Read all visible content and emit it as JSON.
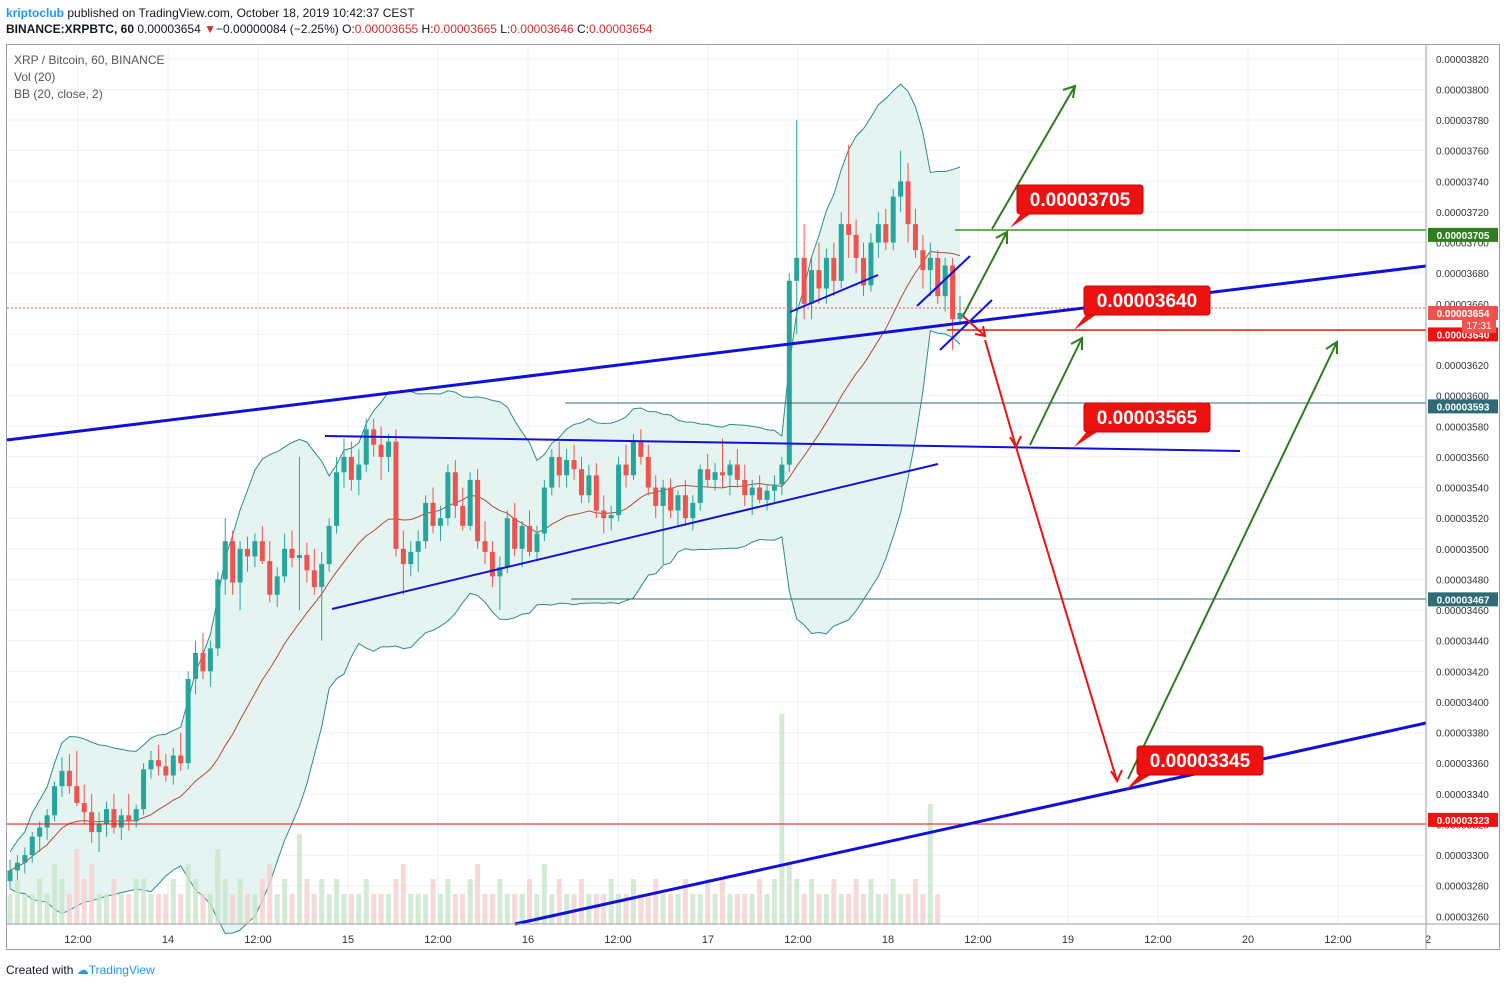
{
  "header": {
    "publisher": "kriptoclub",
    "published_text": "published on TradingView.com, October 18, 2019 10:42:37 CEST",
    "symbol": "BINANCE:XRPBTC, 60",
    "last": "0.00003654",
    "change_arrow": "▼",
    "change": "−0.00000084 (−2.25%)",
    "o_label": "O:",
    "o": "0.00003655",
    "h_label": "H:",
    "h": "0.00003665",
    "l_label": "L:",
    "l": "0.00003646",
    "c_label": "C:",
    "c": "0.00003654"
  },
  "legend": {
    "title": "XRP / Bitcoin, 60, BINANCE",
    "vol": "Vol (20)",
    "bb": "BB (20, close, 2)"
  },
  "footer": {
    "created_with": "Created with",
    "brand": "TradingView"
  },
  "colors": {
    "up": "#26a69a",
    "down": "#ef5350",
    "bb": "#2e8b8b",
    "bb_fill": "#e6f4f1",
    "basis": "#b04a3a",
    "blue": "#1010dd",
    "green": "#2e7d1e",
    "red": "#ee1111"
  },
  "chart_data": {
    "type": "candlestick",
    "ylim": [
      3.25e-05,
      3.83e-05
    ],
    "y_ticks": [
      "0.00003820",
      "0.00003800",
      "0.00003780",
      "0.00003760",
      "0.00003740",
      "0.00003720",
      "0.00003700",
      "0.00003680",
      "0.00003660",
      "0.00003640",
      "0.00003620",
      "0.00003600",
      "0.00003580",
      "0.00003560",
      "0.00003540",
      "0.00003520",
      "0.00003500",
      "0.00003480",
      "0.00003460",
      "0.00003440",
      "0.00003420",
      "0.00003400",
      "0.00003380",
      "0.00003360",
      "0.00003340",
      "0.00003320",
      "0.00003300",
      "0.00003280",
      "0.00003260"
    ],
    "x_ticks": [
      "12:00",
      "14",
      "12:00",
      "15",
      "12:00",
      "16",
      "12:00",
      "17",
      "12:00",
      "18",
      "12:00",
      "19",
      "12:00",
      "20",
      "12:00",
      "2"
    ],
    "last_time_badge": "17:31",
    "price_badges": [
      {
        "label": "0.00003705",
        "value": 3.705e-05,
        "color": "#2e7d1e"
      },
      {
        "label": "0.00003654",
        "value": 3.654e-05,
        "color": "#ef5350"
      },
      {
        "label": "0.00003640",
        "value": 3.64e-05,
        "color": "#ee1111"
      },
      {
        "label": "0.00003593",
        "value": 3.593e-05,
        "color": "#2e6b75"
      },
      {
        "label": "0.00003467",
        "value": 3.467e-05,
        "color": "#2e6b75"
      },
      {
        "label": "0.00003323",
        "value": 3.323e-05,
        "color": "#ee1111"
      }
    ],
    "annotations": [
      {
        "label": "0.00003705",
        "value": 3.705e-05
      },
      {
        "label": "0.00003640",
        "value": 3.64e-05
      },
      {
        "label": "0.00003565",
        "value": 3.565e-05
      },
      {
        "label": "0.00003345",
        "value": 3.345e-05
      }
    ],
    "candles": [
      {
        "o": 3.283,
        "h": 3.297,
        "l": 3.278,
        "c": 3.29
      },
      {
        "o": 3.29,
        "h": 3.3,
        "l": 3.284,
        "c": 3.295
      },
      {
        "o": 3.295,
        "h": 3.305,
        "l": 3.288,
        "c": 3.3
      },
      {
        "o": 3.3,
        "h": 3.315,
        "l": 3.295,
        "c": 3.312
      },
      {
        "o": 3.312,
        "h": 3.322,
        "l": 3.302,
        "c": 3.318
      },
      {
        "o": 3.318,
        "h": 3.33,
        "l": 3.31,
        "c": 3.326
      },
      {
        "o": 3.326,
        "h": 3.348,
        "l": 3.322,
        "c": 3.345
      },
      {
        "o": 3.345,
        "h": 3.364,
        "l": 3.338,
        "c": 3.355
      },
      {
        "o": 3.355,
        "h": 3.366,
        "l": 3.34,
        "c": 3.345
      },
      {
        "o": 3.345,
        "h": 3.368,
        "l": 3.332,
        "c": 3.334
      },
      {
        "o": 3.334,
        "h": 3.346,
        "l": 3.32,
        "c": 3.328
      },
      {
        "o": 3.328,
        "h": 3.34,
        "l": 3.308,
        "c": 3.315
      },
      {
        "o": 3.315,
        "h": 3.328,
        "l": 3.302,
        "c": 3.32
      },
      {
        "o": 3.32,
        "h": 3.335,
        "l": 3.312,
        "c": 3.33
      },
      {
        "o": 3.33,
        "h": 3.34,
        "l": 3.314,
        "c": 3.318
      },
      {
        "o": 3.318,
        "h": 3.33,
        "l": 3.31,
        "c": 3.326
      },
      {
        "o": 3.326,
        "h": 3.34,
        "l": 3.316,
        "c": 3.322
      },
      {
        "o": 3.322,
        "h": 3.333,
        "l": 3.318,
        "c": 3.33
      },
      {
        "o": 3.33,
        "h": 3.36,
        "l": 3.326,
        "c": 3.356
      },
      {
        "o": 3.356,
        "h": 3.368,
        "l": 3.35,
        "c": 3.362
      },
      {
        "o": 3.362,
        "h": 3.372,
        "l": 3.352,
        "c": 3.358
      },
      {
        "o": 3.358,
        "h": 3.366,
        "l": 3.348,
        "c": 3.352
      },
      {
        "o": 3.352,
        "h": 3.37,
        "l": 3.346,
        "c": 3.365
      },
      {
        "o": 3.365,
        "h": 3.38,
        "l": 3.355,
        "c": 3.36
      },
      {
        "o": 3.36,
        "h": 3.42,
        "l": 3.356,
        "c": 3.415
      },
      {
        "o": 3.415,
        "h": 3.44,
        "l": 3.405,
        "c": 3.432
      },
      {
        "o": 3.432,
        "h": 3.445,
        "l": 3.415,
        "c": 3.42
      },
      {
        "o": 3.42,
        "h": 3.44,
        "l": 3.41,
        "c": 3.435
      },
      {
        "o": 3.435,
        "h": 3.485,
        "l": 3.43,
        "c": 3.48
      },
      {
        "o": 3.48,
        "h": 3.52,
        "l": 3.47,
        "c": 3.505
      },
      {
        "o": 3.505,
        "h": 3.512,
        "l": 3.47,
        "c": 3.478
      },
      {
        "o": 3.478,
        "h": 3.505,
        "l": 3.46,
        "c": 3.5
      },
      {
        "o": 3.5,
        "h": 3.508,
        "l": 3.485,
        "c": 3.495
      },
      {
        "o": 3.495,
        "h": 3.51,
        "l": 3.488,
        "c": 3.505
      },
      {
        "o": 3.505,
        "h": 3.515,
        "l": 3.49,
        "c": 3.492
      },
      {
        "o": 3.492,
        "h": 3.505,
        "l": 3.465,
        "c": 3.47
      },
      {
        "o": 3.47,
        "h": 3.488,
        "l": 3.462,
        "c": 3.482
      },
      {
        "o": 3.482,
        "h": 3.51,
        "l": 3.478,
        "c": 3.5
      },
      {
        "o": 3.5,
        "h": 3.512,
        "l": 3.488,
        "c": 3.494
      },
      {
        "o": 3.494,
        "h": 3.56,
        "l": 3.46,
        "c": 3.496
      },
      {
        "o": 3.496,
        "h": 3.504,
        "l": 3.478,
        "c": 3.486
      },
      {
        "o": 3.486,
        "h": 3.5,
        "l": 3.47,
        "c": 3.475
      },
      {
        "o": 3.475,
        "h": 3.498,
        "l": 3.44,
        "c": 3.49
      },
      {
        "o": 3.49,
        "h": 3.52,
        "l": 3.485,
        "c": 3.515
      },
      {
        "o": 3.515,
        "h": 3.56,
        "l": 3.51,
        "c": 3.55
      },
      {
        "o": 3.55,
        "h": 3.572,
        "l": 3.54,
        "c": 3.56
      },
      {
        "o": 3.56,
        "h": 3.57,
        "l": 3.538,
        "c": 3.545
      },
      {
        "o": 3.545,
        "h": 3.565,
        "l": 3.535,
        "c": 3.555
      },
      {
        "o": 3.555,
        "h": 3.585,
        "l": 3.55,
        "c": 3.578
      },
      {
        "o": 3.578,
        "h": 3.585,
        "l": 3.56,
        "c": 3.568
      },
      {
        "o": 3.568,
        "h": 3.58,
        "l": 3.545,
        "c": 3.56
      },
      {
        "o": 3.56,
        "h": 3.575,
        "l": 3.55,
        "c": 3.57
      },
      {
        "o": 3.57,
        "h": 3.578,
        "l": 3.495,
        "c": 3.5
      },
      {
        "o": 3.5,
        "h": 3.512,
        "l": 3.47,
        "c": 3.49
      },
      {
        "o": 3.49,
        "h": 3.505,
        "l": 3.482,
        "c": 3.498
      },
      {
        "o": 3.498,
        "h": 3.512,
        "l": 3.485,
        "c": 3.505
      },
      {
        "o": 3.505,
        "h": 3.535,
        "l": 3.5,
        "c": 3.53
      },
      {
        "o": 3.53,
        "h": 3.54,
        "l": 3.51,
        "c": 3.515
      },
      {
        "o": 3.515,
        "h": 3.528,
        "l": 3.505,
        "c": 3.52
      },
      {
        "o": 3.52,
        "h": 3.555,
        "l": 3.515,
        "c": 3.55
      },
      {
        "o": 3.55,
        "h": 3.558,
        "l": 3.52,
        "c": 3.528
      },
      {
        "o": 3.528,
        "h": 3.54,
        "l": 3.512,
        "c": 3.515
      },
      {
        "o": 3.515,
        "h": 3.55,
        "l": 3.512,
        "c": 3.545
      },
      {
        "o": 3.545,
        "h": 3.552,
        "l": 3.5,
        "c": 3.505
      },
      {
        "o": 3.505,
        "h": 3.518,
        "l": 3.49,
        "c": 3.498
      },
      {
        "o": 3.498,
        "h": 3.505,
        "l": 3.475,
        "c": 3.482
      },
      {
        "o": 3.482,
        "h": 3.495,
        "l": 3.46,
        "c": 3.488
      },
      {
        "o": 3.488,
        "h": 3.525,
        "l": 3.484,
        "c": 3.52
      },
      {
        "o": 3.52,
        "h": 3.53,
        "l": 3.495,
        "c": 3.5
      },
      {
        "o": 3.5,
        "h": 3.518,
        "l": 3.488,
        "c": 3.515
      },
      {
        "o": 3.515,
        "h": 3.525,
        "l": 3.495,
        "c": 3.498
      },
      {
        "o": 3.498,
        "h": 3.515,
        "l": 3.492,
        "c": 3.51
      },
      {
        "o": 3.51,
        "h": 3.545,
        "l": 3.505,
        "c": 3.54
      },
      {
        "o": 3.54,
        "h": 3.565,
        "l": 3.535,
        "c": 3.56
      },
      {
        "o": 3.56,
        "h": 3.57,
        "l": 3.54,
        "c": 3.548
      },
      {
        "o": 3.548,
        "h": 3.565,
        "l": 3.54,
        "c": 3.558
      },
      {
        "o": 3.558,
        "h": 3.568,
        "l": 3.545,
        "c": 3.552
      },
      {
        "o": 3.552,
        "h": 3.56,
        "l": 3.53,
        "c": 3.535
      },
      {
        "o": 3.535,
        "h": 3.555,
        "l": 3.53,
        "c": 3.548
      },
      {
        "o": 3.548,
        "h": 3.556,
        "l": 3.52,
        "c": 3.525
      },
      {
        "o": 3.525,
        "h": 3.535,
        "l": 3.51,
        "c": 3.52
      },
      {
        "o": 3.52,
        "h": 3.528,
        "l": 3.512,
        "c": 3.522
      },
      {
        "o": 3.522,
        "h": 3.56,
        "l": 3.518,
        "c": 3.555
      },
      {
        "o": 3.555,
        "h": 3.568,
        "l": 3.54,
        "c": 3.548
      },
      {
        "o": 3.548,
        "h": 3.575,
        "l": 3.545,
        "c": 3.57
      },
      {
        "o": 3.57,
        "h": 3.578,
        "l": 3.555,
        "c": 3.56
      },
      {
        "o": 3.56,
        "h": 3.568,
        "l": 3.535,
        "c": 3.54
      },
      {
        "o": 3.54,
        "h": 3.548,
        "l": 3.52,
        "c": 3.528
      },
      {
        "o": 3.528,
        "h": 3.545,
        "l": 3.49,
        "c": 3.54
      },
      {
        "o": 3.54,
        "h": 3.546,
        "l": 3.52,
        "c": 3.525
      },
      {
        "o": 3.525,
        "h": 3.538,
        "l": 3.515,
        "c": 3.535
      },
      {
        "o": 3.535,
        "h": 3.545,
        "l": 3.515,
        "c": 3.52
      },
      {
        "o": 3.52,
        "h": 3.535,
        "l": 3.512,
        "c": 3.53
      },
      {
        "o": 3.53,
        "h": 3.555,
        "l": 3.525,
        "c": 3.552
      },
      {
        "o": 3.552,
        "h": 3.562,
        "l": 3.54,
        "c": 3.545
      },
      {
        "o": 3.545,
        "h": 3.556,
        "l": 3.538,
        "c": 3.55
      },
      {
        "o": 3.55,
        "h": 3.572,
        "l": 3.54,
        "c": 3.548
      },
      {
        "o": 3.548,
        "h": 3.558,
        "l": 3.535,
        "c": 3.555
      },
      {
        "o": 3.555,
        "h": 3.565,
        "l": 3.54,
        "c": 3.545
      },
      {
        "o": 3.545,
        "h": 3.555,
        "l": 3.528,
        "c": 3.535
      },
      {
        "o": 3.535,
        "h": 3.545,
        "l": 3.522,
        "c": 3.54
      },
      {
        "o": 3.54,
        "h": 3.548,
        "l": 3.53,
        "c": 3.532
      },
      {
        "o": 3.532,
        "h": 3.542,
        "l": 3.525,
        "c": 3.538
      },
      {
        "o": 3.538,
        "h": 3.548,
        "l": 3.53,
        "c": 3.542
      },
      {
        "o": 3.542,
        "h": 3.56,
        "l": 3.535,
        "c": 3.555
      },
      {
        "o": 3.555,
        "h": 3.68,
        "l": 3.55,
        "c": 3.675
      },
      {
        "o": 3.675,
        "h": 3.78,
        "l": 3.64,
        "c": 3.69
      },
      {
        "o": 3.69,
        "h": 3.712,
        "l": 3.65,
        "c": 3.66
      },
      {
        "o": 3.66,
        "h": 3.69,
        "l": 3.65,
        "c": 3.682
      },
      {
        "o": 3.682,
        "h": 3.7,
        "l": 3.66,
        "c": 3.67
      },
      {
        "o": 3.67,
        "h": 3.696,
        "l": 3.66,
        "c": 3.69
      },
      {
        "o": 3.69,
        "h": 3.7,
        "l": 3.665,
        "c": 3.675
      },
      {
        "o": 3.675,
        "h": 3.72,
        "l": 3.67,
        "c": 3.712
      },
      {
        "o": 3.712,
        "h": 3.764,
        "l": 3.69,
        "c": 3.705
      },
      {
        "o": 3.705,
        "h": 3.715,
        "l": 3.68,
        "c": 3.69
      },
      {
        "o": 3.69,
        "h": 3.7,
        "l": 3.665,
        "c": 3.672
      },
      {
        "o": 3.672,
        "h": 3.706,
        "l": 3.668,
        "c": 3.7
      },
      {
        "o": 3.7,
        "h": 3.72,
        "l": 3.69,
        "c": 3.712
      },
      {
        "o": 3.712,
        "h": 3.722,
        "l": 3.695,
        "c": 3.7
      },
      {
        "o": 3.7,
        "h": 3.735,
        "l": 3.695,
        "c": 3.73
      },
      {
        "o": 3.73,
        "h": 3.76,
        "l": 3.72,
        "c": 3.74
      },
      {
        "o": 3.74,
        "h": 3.752,
        "l": 3.7,
        "c": 3.712
      },
      {
        "o": 3.712,
        "h": 3.722,
        "l": 3.69,
        "c": 3.695
      },
      {
        "o": 3.695,
        "h": 3.705,
        "l": 3.67,
        "c": 3.682
      },
      {
        "o": 3.682,
        "h": 3.7,
        "l": 3.665,
        "c": 3.69
      },
      {
        "o": 3.69,
        "h": 3.695,
        "l": 3.66,
        "c": 3.665
      },
      {
        "o": 3.665,
        "h": 3.69,
        "l": 3.655,
        "c": 3.685
      },
      {
        "o": 3.685,
        "h": 3.69,
        "l": 3.63,
        "c": 3.65
      },
      {
        "o": 3.65,
        "h": 3.665,
        "l": 3.646,
        "c": 3.654
      }
    ],
    "volumes": [
      2,
      3,
      2,
      2,
      3,
      2,
      4,
      3,
      2,
      5,
      3,
      4,
      2,
      2,
      3,
      2,
      2,
      3,
      3,
      2,
      2,
      2,
      3,
      2,
      4,
      3,
      2,
      2,
      5,
      3,
      2,
      3,
      2,
      2,
      3,
      4,
      2,
      3,
      2,
      6,
      3,
      2,
      3,
      2,
      3,
      2,
      2,
      2,
      3,
      2,
      2,
      2,
      3,
      4,
      2,
      2,
      2,
      3,
      2,
      3,
      2,
      2,
      3,
      4,
      2,
      2,
      3,
      2,
      2,
      2,
      3,
      2,
      4,
      2,
      3,
      2,
      2,
      3,
      2,
      2,
      2,
      3,
      2,
      2,
      3,
      2,
      2,
      3,
      2,
      2,
      2,
      3,
      2,
      2,
      3,
      2,
      3,
      2,
      2,
      2,
      2,
      3,
      2,
      3,
      14,
      4,
      3,
      2,
      3,
      2,
      2,
      3,
      2,
      2,
      3,
      2,
      3,
      2,
      2,
      3,
      2,
      2,
      3,
      2,
      8,
      2
    ]
  }
}
